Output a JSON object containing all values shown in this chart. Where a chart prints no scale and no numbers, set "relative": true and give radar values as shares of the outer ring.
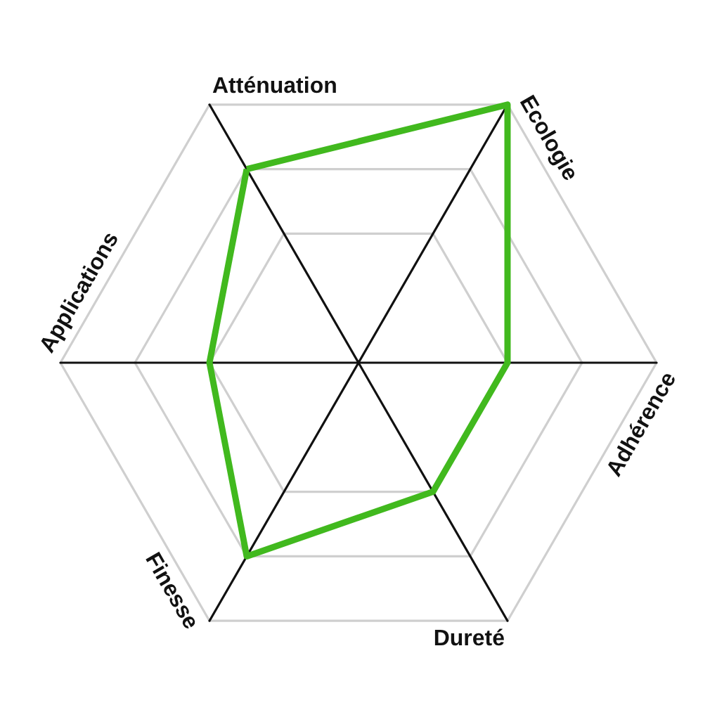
{
  "chart_data": {
    "type": "radar",
    "categories": [
      "Atténuation",
      "Ecologie",
      "Adhérence",
      "Dureté",
      "Finesse",
      "Applications"
    ],
    "relative": true,
    "grid": true,
    "marker": "none",
    "series": [
      {
        "color": "#41b91e",
        "values": [
          0.75,
          1,
          0.5,
          0.5,
          0.75,
          0.5
        ]
      }
    ]
  }
}
